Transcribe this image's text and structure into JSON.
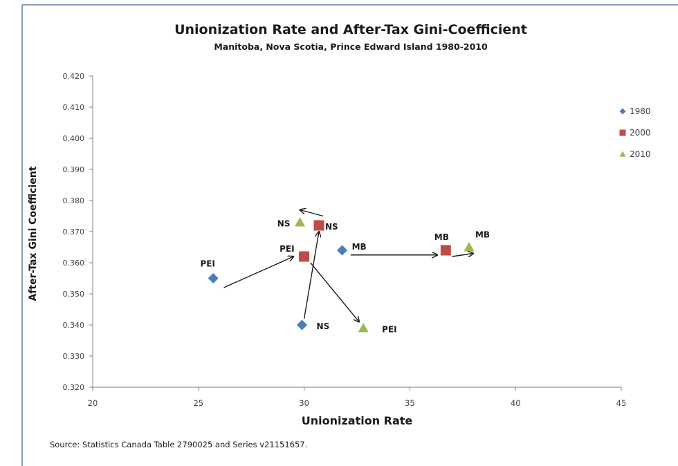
{
  "chart_data": {
    "type": "scatter",
    "title": "Unionization Rate and After-Tax Gini-Coefficient",
    "subtitle": "Manitoba, Nova Scotia, Prince Edward Island 1980-2010",
    "xlabel": "Unionization Rate",
    "ylabel": "After-Tax Gini Coefficient",
    "xlim": [
      20,
      45
    ],
    "ylim": [
      0.32,
      0.42
    ],
    "x_ticks": [
      "20",
      "25",
      "30",
      "35",
      "40",
      "45"
    ],
    "y_ticks": [
      "0.320",
      "0.330",
      "0.340",
      "0.350",
      "0.360",
      "0.370",
      "0.380",
      "0.390",
      "0.400",
      "0.410",
      "0.420"
    ],
    "grid": false,
    "legend_position": "right",
    "source": "Source: Statistics Canada Table 2790025 and Series v21151657.",
    "series": [
      {
        "name": "1980",
        "marker": "diamond",
        "color": "#4a7ebb",
        "points": [
          {
            "label": "PEI",
            "x": 25.7,
            "y": 0.355
          },
          {
            "label": "NS",
            "x": 29.9,
            "y": 0.34
          },
          {
            "label": "MB",
            "x": 31.8,
            "y": 0.364
          }
        ]
      },
      {
        "name": "2000",
        "marker": "square",
        "color": "#be4b48",
        "points": [
          {
            "label": "PEI",
            "x": 30.0,
            "y": 0.362
          },
          {
            "label": "NS",
            "x": 30.7,
            "y": 0.372
          },
          {
            "label": "MB",
            "x": 36.7,
            "y": 0.364
          }
        ]
      },
      {
        "name": "2010",
        "marker": "triangle",
        "color": "#98b954",
        "points": [
          {
            "label": "PEI",
            "x": 32.8,
            "y": 0.339
          },
          {
            "label": "NS",
            "x": 29.8,
            "y": 0.373
          },
          {
            "label": "MB",
            "x": 37.8,
            "y": 0.365
          }
        ]
      }
    ],
    "arrows": [
      {
        "from": [
          26.2,
          0.352
        ],
        "to": [
          29.5,
          0.362
        ]
      },
      {
        "from": [
          30.0,
          0.342
        ],
        "to": [
          30.7,
          0.37
        ]
      },
      {
        "from": [
          30.3,
          0.36
        ],
        "to": [
          32.6,
          0.341
        ]
      },
      {
        "from": [
          30.9,
          0.375
        ],
        "to": [
          29.8,
          0.377
        ]
      },
      {
        "from": [
          32.2,
          0.3625
        ],
        "to": [
          36.3,
          0.3625
        ]
      },
      {
        "from": [
          37.0,
          0.362
        ],
        "to": [
          38.0,
          0.363
        ]
      }
    ]
  }
}
